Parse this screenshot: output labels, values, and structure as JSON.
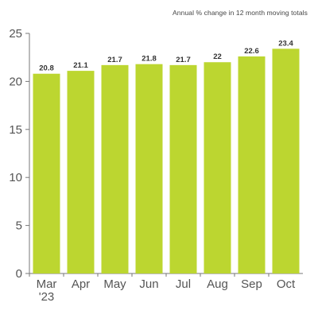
{
  "chart_data": {
    "type": "bar",
    "subtitle": "Annual % change in 12 month moving totals",
    "categories": [
      [
        "Mar",
        "'23"
      ],
      [
        "Apr"
      ],
      [
        "May"
      ],
      [
        "Jun"
      ],
      [
        "Jul"
      ],
      [
        "Aug"
      ],
      [
        "Sep"
      ],
      [
        "Oct"
      ]
    ],
    "values": [
      20.8,
      21.1,
      21.7,
      21.8,
      21.7,
      22,
      22.6,
      23.4
    ],
    "value_labels": [
      "20.8",
      "21.1",
      "21.7",
      "21.8",
      "21.7",
      "22",
      "22.6",
      "23.4"
    ],
    "ylim": [
      0,
      25
    ],
    "yticks": [
      0,
      5,
      10,
      15,
      20,
      25
    ],
    "grid": false,
    "colors": {
      "bar": "#bcd630",
      "axis": "#777777"
    }
  }
}
